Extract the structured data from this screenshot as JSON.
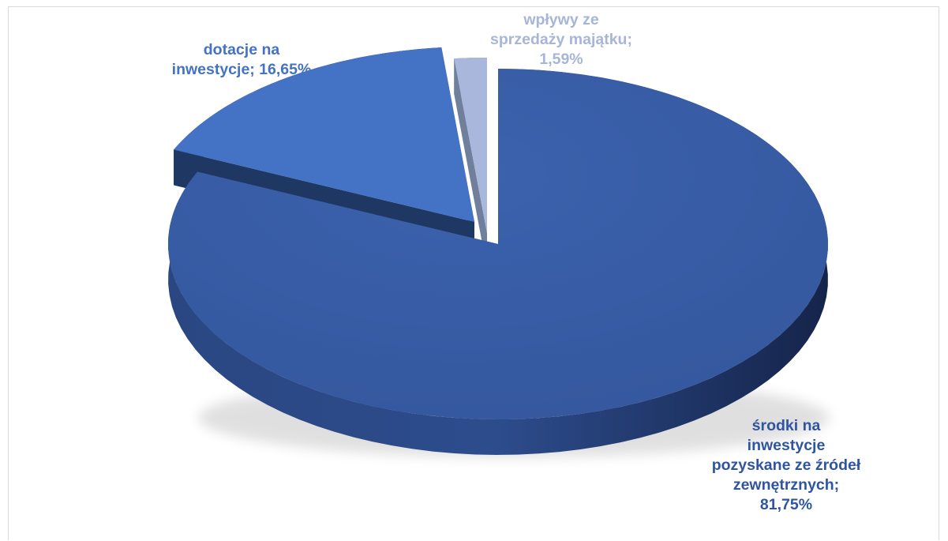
{
  "chart_data": {
    "type": "pie",
    "title": "",
    "slices": [
      {
        "name": "środki na inwestycje pozyskane ze źródeł zewnętrznych",
        "value": 81.75,
        "value_label": "81,75%",
        "color": "#3a5ea8",
        "label_lines": [
          "środki na",
          "inwestycje",
          "pozyskane ze źródeł",
          "zewnętrznych;",
          "81,75%"
        ],
        "label_color": "#2f55a0"
      },
      {
        "name": "dotacje na inwestycje",
        "value": 16.65,
        "value_label": "16,65%",
        "color": "#4472c4",
        "label_lines": [
          "dotacje na",
          "inwestycje; 16,65%"
        ],
        "label_color": "#4472c4"
      },
      {
        "name": "wpływy ze sprzedaży majątku",
        "value": 1.59,
        "value_label": "1,59%",
        "color": "#a9b7dc",
        "label_lines": [
          "wpływy ze",
          "sprzedaży majątku;",
          "1,59%"
        ],
        "label_color": "#a7b5d8"
      }
    ],
    "legend": "none",
    "style": "3d-exploded"
  }
}
